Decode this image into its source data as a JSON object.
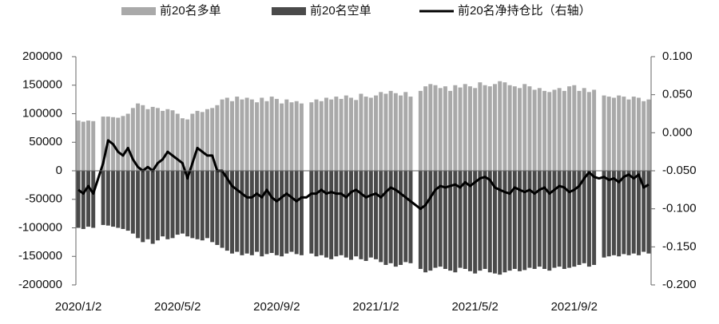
{
  "chart_data": {
    "type": "bar",
    "categories": [
      "2020/1/2",
      null,
      null,
      null,
      null,
      null,
      null,
      null,
      null,
      null,
      null,
      null,
      null,
      null,
      null,
      null,
      null,
      null,
      null,
      null,
      "2020/5/2",
      null,
      null,
      null,
      null,
      null,
      null,
      null,
      null,
      null,
      null,
      null,
      null,
      null,
      null,
      null,
      null,
      null,
      null,
      null,
      "2020/9/2",
      null,
      null,
      null,
      null,
      null,
      null,
      null,
      null,
      null,
      null,
      null,
      null,
      null,
      null,
      null,
      null,
      null,
      null,
      null,
      "2021/1/2",
      null,
      null,
      null,
      null,
      null,
      null,
      null,
      null,
      null,
      null,
      null,
      null,
      null,
      null,
      null,
      null,
      null,
      null,
      null,
      "2021/5/2",
      null,
      null,
      null,
      null,
      null,
      null,
      null,
      null,
      null,
      null,
      null,
      null,
      null,
      null,
      null,
      null,
      null,
      null,
      null,
      "2021/9/2",
      null,
      null,
      null,
      null,
      null,
      null,
      null,
      null,
      null,
      null,
      null,
      null,
      null,
      null,
      null
    ],
    "series": [
      {
        "name": "前20名多单",
        "type": "bar",
        "color": "#a9a9a9",
        "values": [
          88000,
          86000,
          88000,
          87000,
          null,
          95000,
          95000,
          94000,
          93000,
          96000,
          100000,
          110000,
          118000,
          115000,
          108000,
          112000,
          110000,
          105000,
          108000,
          106000,
          100000,
          92000,
          90000,
          100000,
          105000,
          103000,
          108000,
          110000,
          115000,
          125000,
          128000,
          122000,
          130000,
          125000,
          128000,
          125000,
          120000,
          128000,
          122000,
          130000,
          126000,
          118000,
          125000,
          120000,
          122000,
          118000,
          null,
          120000,
          125000,
          122000,
          128000,
          125000,
          130000,
          126000,
          132000,
          128000,
          124000,
          135000,
          130000,
          128000,
          132000,
          138000,
          135000,
          140000,
          136000,
          132000,
          138000,
          130000,
          null,
          140000,
          148000,
          152000,
          150000,
          145000,
          148000,
          140000,
          150000,
          146000,
          152000,
          148000,
          145000,
          155000,
          150000,
          148000,
          152000,
          157000,
          155000,
          150000,
          148000,
          145000,
          152000,
          148000,
          142000,
          145000,
          140000,
          138000,
          142000,
          145000,
          140000,
          148000,
          150000,
          140000,
          145000,
          138000,
          142000,
          null,
          132000,
          130000,
          128000,
          132000,
          130000,
          125000,
          130000,
          128000,
          122000,
          125000
        ]
      },
      {
        "name": "前20名空单",
        "type": "bar",
        "color": "#4a4a4a",
        "values": [
          -100000,
          -102000,
          -98000,
          -100000,
          null,
          -95000,
          -96000,
          -98000,
          -100000,
          -102000,
          -105000,
          -110000,
          -118000,
          -125000,
          -120000,
          -128000,
          -122000,
          -115000,
          -120000,
          -118000,
          -112000,
          -110000,
          -115000,
          -118000,
          -120000,
          -122000,
          -118000,
          -125000,
          -130000,
          -135000,
          -140000,
          -145000,
          -142000,
          -148000,
          -145000,
          -148000,
          -142000,
          -150000,
          -146000,
          -144000,
          -148000,
          -150000,
          -145000,
          -142000,
          -146000,
          -148000,
          null,
          -145000,
          -150000,
          -148000,
          -152000,
          -155000,
          -150000,
          -148000,
          -152000,
          -156000,
          -150000,
          -155000,
          -158000,
          -152000,
          -155000,
          -160000,
          -165000,
          -162000,
          -168000,
          -165000,
          -160000,
          -162000,
          null,
          -172000,
          -178000,
          -175000,
          -170000,
          -168000,
          -172000,
          -175000,
          -178000,
          -170000,
          -172000,
          -176000,
          -180000,
          -175000,
          -172000,
          -178000,
          -180000,
          -182000,
          -178000,
          -175000,
          -172000,
          -176000,
          -174000,
          -170000,
          -172000,
          -168000,
          -172000,
          -175000,
          -170000,
          -168000,
          -172000,
          -170000,
          -168000,
          -165000,
          -162000,
          -168000,
          -165000,
          null,
          -152000,
          -150000,
          -148000,
          -150000,
          -146000,
          -148000,
          -145000,
          -148000,
          -142000,
          -145000
        ]
      },
      {
        "name": "前20名净持仓比（右轴）",
        "type": "line",
        "axis": "y2",
        "color": "#000000",
        "values": [
          -0.075,
          -0.08,
          -0.07,
          -0.08,
          -0.06,
          -0.04,
          -0.01,
          -0.015,
          -0.025,
          -0.03,
          -0.02,
          -0.035,
          -0.045,
          -0.05,
          -0.045,
          -0.05,
          -0.04,
          -0.035,
          -0.025,
          -0.03,
          -0.035,
          -0.04,
          -0.06,
          -0.04,
          -0.02,
          -0.025,
          -0.03,
          -0.03,
          -0.05,
          -0.05,
          -0.06,
          -0.07,
          -0.075,
          -0.08,
          -0.085,
          -0.085,
          -0.08,
          -0.085,
          -0.075,
          -0.085,
          -0.09,
          -0.085,
          -0.08,
          -0.085,
          -0.09,
          -0.085,
          -0.085,
          -0.08,
          -0.08,
          -0.075,
          -0.08,
          -0.078,
          -0.08,
          -0.08,
          -0.085,
          -0.078,
          -0.075,
          -0.08,
          -0.085,
          -0.082,
          -0.08,
          -0.085,
          -0.078,
          -0.072,
          -0.075,
          -0.08,
          -0.085,
          -0.09,
          -0.095,
          -0.1,
          -0.095,
          -0.085,
          -0.075,
          -0.07,
          -0.072,
          -0.07,
          -0.068,
          -0.072,
          -0.065,
          -0.07,
          -0.065,
          -0.06,
          -0.058,
          -0.062,
          -0.072,
          -0.075,
          -0.078,
          -0.08,
          -0.072,
          -0.075,
          -0.078,
          -0.075,
          -0.08,
          -0.075,
          -0.072,
          -0.08,
          -0.075,
          -0.07,
          -0.072,
          -0.078,
          -0.075,
          -0.07,
          -0.06,
          -0.052,
          -0.058,
          -0.06,
          -0.058,
          -0.062,
          -0.06,
          -0.065,
          -0.058,
          -0.055,
          -0.06,
          -0.055,
          -0.072,
          -0.068
        ]
      }
    ],
    "ylim": [
      -200000,
      200000
    ],
    "yticks": [
      -200000,
      -150000,
      -100000,
      -50000,
      0,
      50000,
      100000,
      150000,
      200000
    ],
    "y2lim": [
      -0.2,
      0.1
    ],
    "y2ticks": [
      {
        "value": -0.2,
        "label": "-0.200"
      },
      {
        "value": -0.15,
        "label": "-0.150"
      },
      {
        "value": -0.1,
        "label": "-0.100"
      },
      {
        "value": -0.05,
        "label": "-0.050"
      },
      {
        "value": 0,
        "label": "0.000"
      },
      {
        "value": 0.05,
        "label": "0.050"
      },
      {
        "value": 0.1,
        "label": "0.100"
      }
    ],
    "legend": "top"
  }
}
